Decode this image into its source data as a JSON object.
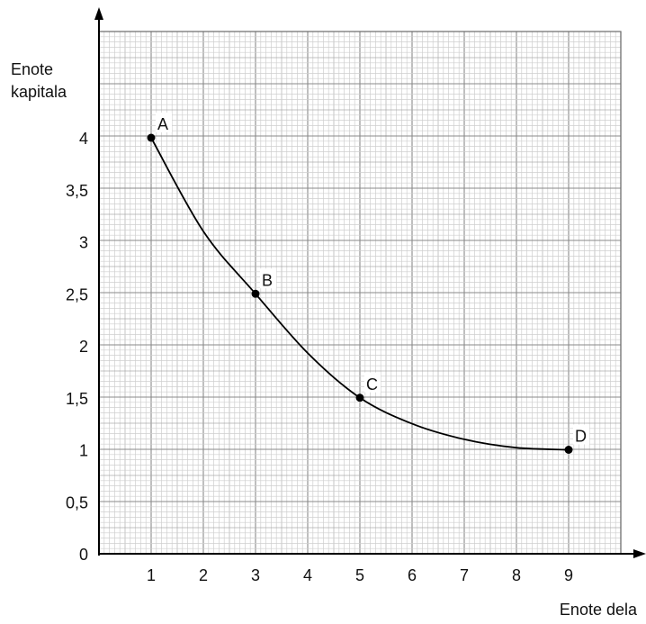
{
  "chart_data": {
    "type": "line",
    "title": "",
    "ylabel_lines": [
      "Enote",
      "kapitala"
    ],
    "xlabel": "Enote dela",
    "x_ticks": [
      "1",
      "2",
      "3",
      "4",
      "5",
      "6",
      "7",
      "8",
      "9"
    ],
    "y_ticks": [
      "0",
      "0,5",
      "1",
      "1,5",
      "2",
      "2,5",
      "3",
      "3,5",
      "4"
    ],
    "xlim": [
      0,
      10
    ],
    "ylim": [
      0,
      5
    ],
    "grid": true,
    "points": [
      {
        "label": "A",
        "x": 1,
        "y": 4
      },
      {
        "label": "B",
        "x": 3,
        "y": 2.5
      },
      {
        "label": "C",
        "x": 5,
        "y": 1.5
      },
      {
        "label": "D",
        "x": 9,
        "y": 1
      }
    ],
    "curve": [
      [
        1,
        4
      ],
      [
        2,
        3.1
      ],
      [
        3,
        2.5
      ],
      [
        4,
        1.93
      ],
      [
        5,
        1.5
      ],
      [
        6,
        1.25
      ],
      [
        7,
        1.1
      ],
      [
        8,
        1.02
      ],
      [
        9,
        1
      ]
    ]
  }
}
